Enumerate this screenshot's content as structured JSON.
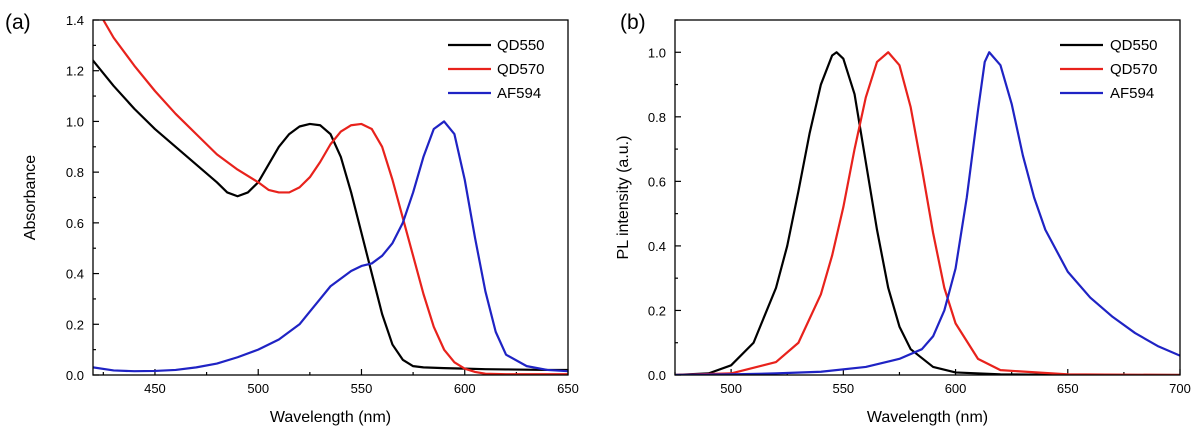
{
  "chart_data": [
    {
      "type": "line",
      "panel_label": "(a)",
      "xlabel": "Wavelength (nm)",
      "ylabel": "Absorbance",
      "xlim": [
        420,
        650
      ],
      "ylim": [
        0,
        1.4
      ],
      "xticks": [
        450,
        500,
        550,
        600,
        650
      ],
      "yticks": [
        0.0,
        0.2,
        0.4,
        0.6,
        0.8,
        1.0,
        1.2,
        1.4
      ],
      "x_tick_labels": [
        "450",
        "500",
        "550",
        "600",
        "650"
      ],
      "y_tick_labels": [
        "0.0",
        "0.2",
        "0.4",
        "0.6",
        "0.8",
        "1.0",
        "1.2",
        "1.4"
      ],
      "legend_position": "top-right",
      "series": [
        {
          "name": "QD550",
          "color": "#000000",
          "x": [
            420,
            430,
            440,
            450,
            460,
            470,
            480,
            485,
            490,
            495,
            500,
            505,
            510,
            515,
            520,
            525,
            530,
            535,
            540,
            545,
            550,
            555,
            560,
            565,
            570,
            575,
            580,
            590,
            600,
            610,
            620,
            630,
            640,
            650
          ],
          "y": [
            1.24,
            1.14,
            1.05,
            0.97,
            0.9,
            0.83,
            0.76,
            0.72,
            0.705,
            0.72,
            0.76,
            0.83,
            0.9,
            0.95,
            0.98,
            0.99,
            0.985,
            0.95,
            0.86,
            0.72,
            0.56,
            0.4,
            0.24,
            0.12,
            0.06,
            0.035,
            0.03,
            0.027,
            0.025,
            0.023,
            0.022,
            0.021,
            0.02,
            0.02
          ]
        },
        {
          "name": "QD570",
          "color": "#e8221c",
          "x": [
            425,
            430,
            440,
            450,
            460,
            470,
            480,
            490,
            500,
            505,
            510,
            515,
            520,
            525,
            530,
            535,
            540,
            545,
            550,
            555,
            560,
            565,
            570,
            575,
            580,
            585,
            590,
            595,
            600,
            605,
            610,
            620,
            630,
            640,
            650
          ],
          "y": [
            1.4,
            1.33,
            1.22,
            1.12,
            1.03,
            0.95,
            0.87,
            0.81,
            0.76,
            0.73,
            0.72,
            0.72,
            0.74,
            0.78,
            0.84,
            0.91,
            0.96,
            0.985,
            0.99,
            0.97,
            0.9,
            0.77,
            0.62,
            0.47,
            0.32,
            0.19,
            0.1,
            0.05,
            0.025,
            0.012,
            0.005,
            0.003,
            0.003,
            0.003,
            0.003
          ]
        },
        {
          "name": "AF594",
          "color": "#1f23c4",
          "x": [
            420,
            430,
            440,
            450,
            460,
            470,
            480,
            490,
            500,
            510,
            520,
            525,
            530,
            535,
            540,
            545,
            550,
            555,
            560,
            565,
            570,
            575,
            580,
            585,
            590,
            595,
            600,
            605,
            610,
            615,
            620,
            630,
            640,
            650
          ],
          "y": [
            0.03,
            0.018,
            0.015,
            0.016,
            0.02,
            0.03,
            0.045,
            0.07,
            0.1,
            0.14,
            0.2,
            0.25,
            0.3,
            0.35,
            0.38,
            0.41,
            0.43,
            0.44,
            0.47,
            0.52,
            0.6,
            0.72,
            0.86,
            0.97,
            1.0,
            0.95,
            0.77,
            0.54,
            0.33,
            0.17,
            0.08,
            0.035,
            0.02,
            0.015
          ]
        }
      ]
    },
    {
      "type": "line",
      "panel_label": "(b)",
      "xlabel": "Wavelength (nm)",
      "ylabel": "PL intensity (a.u.)",
      "xlim": [
        475,
        700
      ],
      "ylim": [
        0,
        1.1
      ],
      "xticks": [
        500,
        550,
        600,
        650,
        700
      ],
      "yticks": [
        0.0,
        0.2,
        0.4,
        0.6,
        0.8,
        1.0
      ],
      "x_tick_labels": [
        "500",
        "550",
        "600",
        "650",
        "700"
      ],
      "y_tick_labels": [
        "0.0",
        "0.2",
        "0.4",
        "0.6",
        "0.8",
        "1.0"
      ],
      "legend_position": "top-right",
      "series": [
        {
          "name": "QD550",
          "color": "#000000",
          "x": [
            475,
            490,
            500,
            510,
            520,
            525,
            530,
            535,
            540,
            545,
            547,
            550,
            555,
            560,
            565,
            570,
            575,
            580,
            590,
            600,
            620,
            650,
            700
          ],
          "y": [
            0.0,
            0.005,
            0.03,
            0.1,
            0.27,
            0.4,
            0.57,
            0.75,
            0.9,
            0.99,
            1.0,
            0.98,
            0.87,
            0.66,
            0.45,
            0.27,
            0.15,
            0.08,
            0.025,
            0.008,
            0.002,
            0.0,
            0.0
          ]
        },
        {
          "name": "QD570",
          "color": "#e8221c",
          "x": [
            475,
            500,
            520,
            530,
            540,
            545,
            550,
            555,
            560,
            565,
            570,
            575,
            580,
            585,
            590,
            595,
            600,
            610,
            620,
            650,
            700
          ],
          "y": [
            0.0,
            0.005,
            0.04,
            0.1,
            0.25,
            0.37,
            0.52,
            0.7,
            0.86,
            0.97,
            1.0,
            0.96,
            0.83,
            0.64,
            0.44,
            0.27,
            0.16,
            0.05,
            0.015,
            0.002,
            0.0
          ]
        },
        {
          "name": "AF594",
          "color": "#1f23c4",
          "x": [
            475,
            500,
            520,
            540,
            560,
            575,
            585,
            590,
            595,
            600,
            605,
            610,
            613,
            615,
            620,
            625,
            630,
            635,
            640,
            650,
            660,
            670,
            680,
            690,
            700
          ],
          "y": [
            0.0,
            0.002,
            0.005,
            0.01,
            0.025,
            0.05,
            0.08,
            0.12,
            0.2,
            0.33,
            0.55,
            0.82,
            0.97,
            1.0,
            0.96,
            0.84,
            0.68,
            0.55,
            0.45,
            0.32,
            0.24,
            0.18,
            0.13,
            0.09,
            0.06
          ]
        }
      ]
    }
  ]
}
